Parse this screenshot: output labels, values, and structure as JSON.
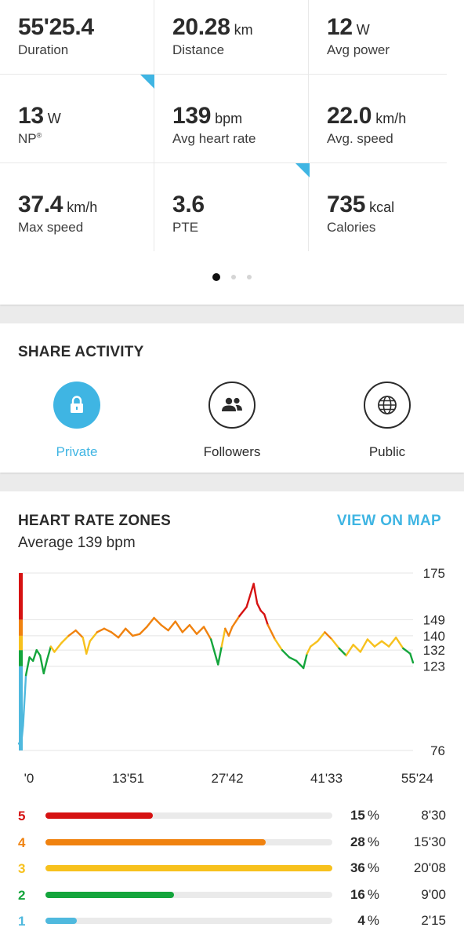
{
  "stats": [
    {
      "value": "55'25.4",
      "unit": "",
      "label": "Duration"
    },
    {
      "value": "20.28",
      "unit": "km",
      "label": "Distance"
    },
    {
      "value": "12",
      "unit": "W",
      "label": "Avg power"
    },
    {
      "value": "13",
      "unit": "W",
      "label": "NP",
      "label_sup": "®"
    },
    {
      "value": "139",
      "unit": "bpm",
      "label": "Avg heart rate"
    },
    {
      "value": "22.0",
      "unit": "km/h",
      "label": "Avg. speed"
    },
    {
      "value": "37.4",
      "unit": "km/h",
      "label": "Max speed"
    },
    {
      "value": "3.6",
      "unit": "",
      "label": "PTE"
    },
    {
      "value": "735",
      "unit": "kcal",
      "label": "Calories"
    }
  ],
  "pager": {
    "pages": 3,
    "active": 0
  },
  "share": {
    "title": "SHARE ACTIVITY",
    "options": [
      {
        "label": "Private",
        "icon": "lock-icon",
        "selected": true
      },
      {
        "label": "Followers",
        "icon": "people-icon",
        "selected": false
      },
      {
        "label": "Public",
        "icon": "globe-icon",
        "selected": false
      }
    ]
  },
  "heart": {
    "title": "HEART RATE ZONES",
    "view_map": "VIEW ON MAP",
    "average": "Average 139 bpm"
  },
  "colors": {
    "accent": "#3fb5e3",
    "zone5": "#d61212",
    "zone4": "#f0820f",
    "zone3": "#f7c11d",
    "zone2": "#14a53c",
    "zone1": "#4fb9de"
  },
  "chart_data": {
    "type": "line",
    "xlabel": "",
    "ylabel": "",
    "x_ticks": [
      "'0",
      "13'51",
      "27'42",
      "41'33",
      "55'24"
    ],
    "y_ticks": [
      175,
      149,
      140,
      132,
      123,
      76
    ],
    "ylim": [
      76,
      175
    ],
    "xlim_minutes": [
      0,
      55.4
    ],
    "grid": true,
    "zone_bounds": [
      {
        "zone": 1,
        "from": 76,
        "to": 123
      },
      {
        "zone": 2,
        "from": 123,
        "to": 132
      },
      {
        "zone": 3,
        "from": 132,
        "to": 140
      },
      {
        "zone": 4,
        "from": 140,
        "to": 149
      },
      {
        "zone": 5,
        "from": 149,
        "to": 175
      }
    ],
    "series": [
      {
        "x": [
          0,
          0.3,
          0.6,
          1,
          1.5,
          2,
          2.5,
          3,
          3.5,
          4,
          4.5,
          5,
          6,
          7,
          8,
          9,
          9.5,
          10,
          11,
          12,
          13,
          14,
          15,
          16,
          17,
          18,
          19,
          20,
          21,
          22,
          23,
          24,
          25,
          26,
          27,
          28,
          28.5,
          29,
          29.5,
          30,
          31,
          32,
          33,
          33.5,
          34,
          34.5,
          35,
          36,
          37,
          38,
          39,
          40,
          40.5,
          41,
          42,
          43,
          44,
          45,
          46,
          47,
          48,
          49,
          50,
          51,
          52,
          53,
          54,
          55,
          55.4
        ],
        "y": [
          80,
          78,
          90,
          118,
          128,
          126,
          132,
          129,
          119,
          127,
          134,
          131,
          136,
          140,
          143,
          139,
          130,
          137,
          142,
          144,
          142,
          139,
          144,
          140,
          141,
          145,
          150,
          146,
          143,
          148,
          142,
          146,
          141,
          145,
          138,
          124,
          134,
          144,
          140,
          145,
          151,
          156,
          169,
          158,
          154,
          152,
          146,
          138,
          132,
          128,
          126,
          122,
          130,
          134,
          137,
          142,
          138,
          133,
          129,
          135,
          131,
          138,
          134,
          137,
          134,
          139,
          133,
          130,
          125
        ]
      }
    ]
  },
  "zones": [
    {
      "zone": "5",
      "percent": "15",
      "time": "8'30",
      "fraction": 0.375
    },
    {
      "zone": "4",
      "percent": "28",
      "time": "15'30",
      "fraction": 0.768
    },
    {
      "zone": "3",
      "percent": "36",
      "time": "20'08",
      "fraction": 1.0
    },
    {
      "zone": "2",
      "percent": "16",
      "time": "9'00",
      "fraction": 0.448
    },
    {
      "zone": "1",
      "percent": "4",
      "time": "2'15",
      "fraction": 0.11
    }
  ],
  "zone_unit": "%"
}
